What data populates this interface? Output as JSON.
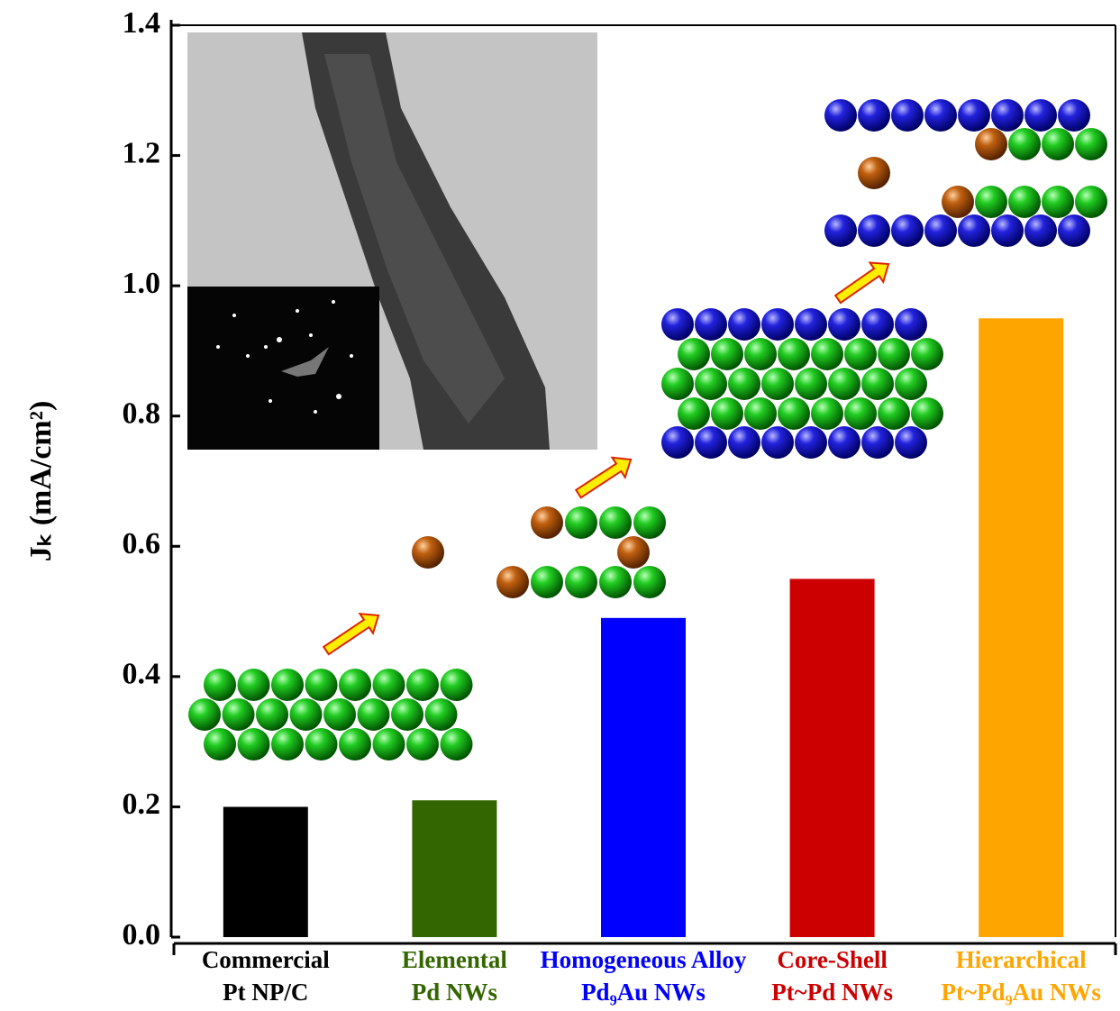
{
  "chart_data": {
    "type": "bar",
    "y_label": "Jₖ (mA/cm²)",
    "categories": [
      [
        "Commercial",
        "Pt NP/C"
      ],
      [
        "Elemental",
        "Pd NWs"
      ],
      [
        "Homogeneous Alloy",
        "Pd₉Au NWs"
      ],
      [
        "Core-Shell",
        "Pt~Pd NWs"
      ],
      [
        "Hierarchical",
        "Pt~Pd₉Au NWs"
      ]
    ],
    "values": [
      0.2,
      0.21,
      0.49,
      0.55,
      0.95
    ],
    "colors": [
      "#000000",
      "#336600",
      "#0000ff",
      "#cc0000",
      "#ffa500"
    ],
    "ylim": [
      0,
      1.4
    ],
    "yticks": [
      {
        "value": 0,
        "label": "0.0"
      },
      0.2,
      0.4,
      0.6,
      0.8,
      {
        "value": 1,
        "label": "1.0"
      },
      1.2,
      1.4
    ]
  }
}
